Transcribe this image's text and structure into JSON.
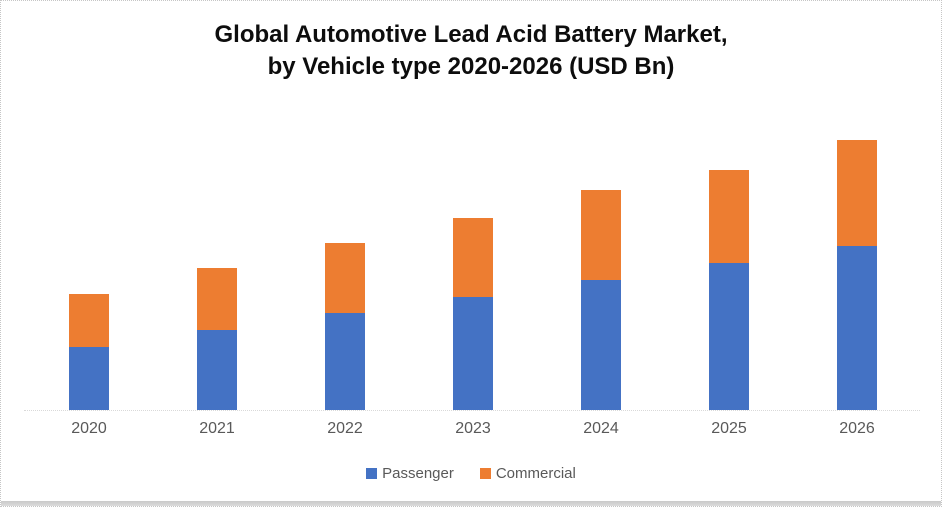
{
  "title": {
    "line1": "Global Automotive Lead Acid Battery Market,",
    "line2": "by Vehicle type 2020-2026 (USD Bn)"
  },
  "chart_data": {
    "type": "bar",
    "stacked": true,
    "title": "Global Automotive Lead Acid Battery Market, by Vehicle type 2020-2026 (USD Bn)",
    "categories": [
      "2020",
      "2021",
      "2022",
      "2023",
      "2024",
      "2025",
      "2026"
    ],
    "series": [
      {
        "name": "Passenger",
        "color": "#4472C4",
        "values": [
          63,
          80,
          97,
          113,
          130,
          147,
          164
        ]
      },
      {
        "name": "Commercial",
        "color": "#ED7D31",
        "values": [
          53,
          62,
          70,
          79,
          90,
          93,
          106
        ]
      }
    ],
    "totals": [
      116,
      142,
      167,
      192,
      220,
      240,
      270
    ],
    "xlabel": "",
    "ylabel": "",
    "ylim": [
      0,
      280
    ],
    "value_note": "No y-axis or data labels shown; values are estimated relative units proportional to bar heights",
    "grid": false,
    "y_axis_visible": false,
    "legend_position": "bottom",
    "axis_color": "#D9D9D9",
    "label_color": "#595959"
  }
}
